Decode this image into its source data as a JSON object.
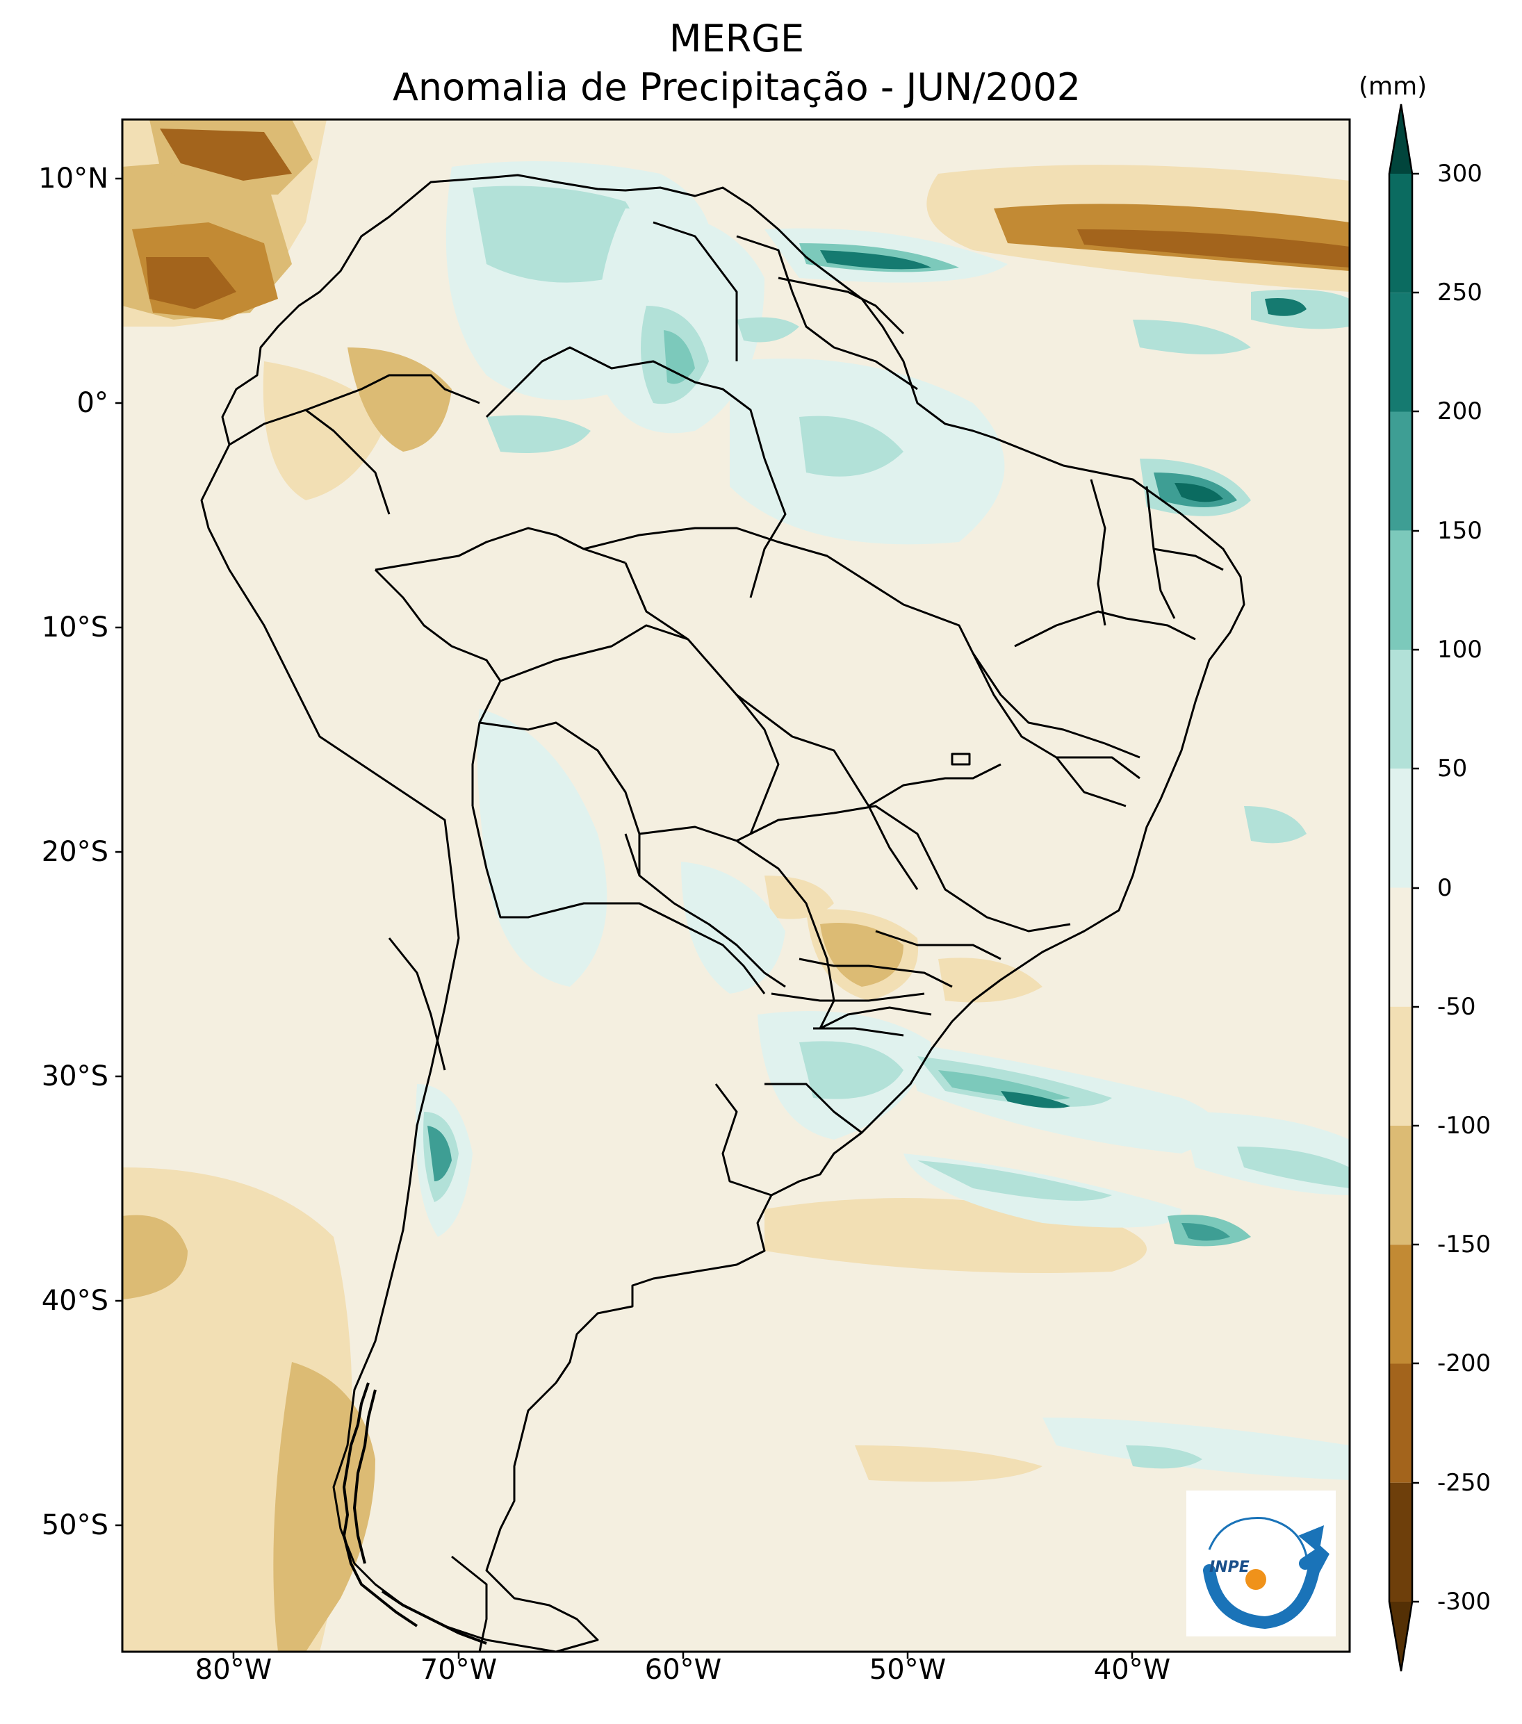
{
  "title": "MERGE",
  "subtitle": "Anomalia de Precipitação - JUN/2002",
  "colorbar": {
    "unit": "(mm)",
    "ticks": [
      "300",
      "250",
      "200",
      "150",
      "100",
      "50",
      "0",
      "-50",
      "-100",
      "-150",
      "-200",
      "-250",
      "-300"
    ],
    "bins": [
      {
        "range": [
          250,
          300
        ],
        "color": "#0b6b60"
      },
      {
        "range": [
          200,
          250
        ],
        "color": "#157a70"
      },
      {
        "range": [
          150,
          200
        ],
        "color": "#3e9e94"
      },
      {
        "range": [
          100,
          150
        ],
        "color": "#7cc9bb"
      },
      {
        "range": [
          50,
          100
        ],
        "color": "#b2e1d8"
      },
      {
        "range": [
          0,
          50
        ],
        "color": "#e0f2ee"
      },
      {
        "range": [
          -50,
          0
        ],
        "color": "#f4efe0"
      },
      {
        "range": [
          -100,
          -50
        ],
        "color": "#f2dfb4"
      },
      {
        "range": [
          -150,
          -100
        ],
        "color": "#dcbb74"
      },
      {
        "range": [
          -200,
          -150
        ],
        "color": "#c28a34"
      },
      {
        "range": [
          -250,
          -200
        ],
        "color": "#a3641c"
      },
      {
        "range": [
          -300,
          -250
        ],
        "color": "#6e3f0b"
      }
    ],
    "extend_max_color": "#01453c",
    "extend_min_color": "#543005"
  },
  "axes": {
    "lat_labels": [
      "10°N",
      "0°",
      "10°S",
      "20°S",
      "30°S",
      "40°S",
      "50°S"
    ],
    "lon_labels": [
      "80°W",
      "70°W",
      "60°W",
      "50°W",
      "40°W"
    ]
  },
  "logo": {
    "text": "INPE"
  },
  "colors": {
    "background": "#f4efe0",
    "border_lines": "#000000"
  }
}
